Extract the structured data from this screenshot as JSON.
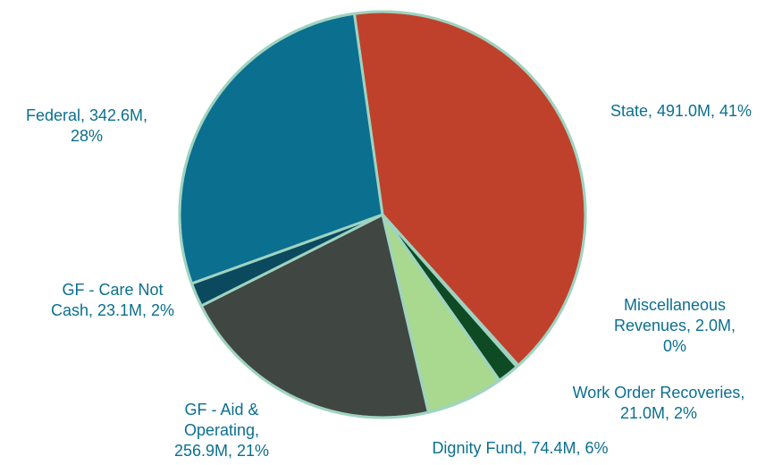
{
  "chart_data": {
    "type": "pie",
    "labels": [
      "State, 491.0M, 41%",
      "Miscellaneous Revenues, 2.0M, 0%",
      "Work Order Recoveries, 21.0M, 2%",
      "Dignity Fund, 74.4M, 6%",
      "GF - Aid & Operating, 256.9M, 21%",
      "GF - Care Not Cash, 23.1M, 2%",
      "Federal, 342.6M, 28%"
    ],
    "values": [
      491.0,
      2.0,
      21.0,
      74.4,
      256.9,
      23.1,
      342.6
    ],
    "colors": [
      "#c0412b",
      "#c9b98e",
      "#0e4a23",
      "#a9d98f",
      "#404641",
      "#0b4a5e",
      "#0b6f8f"
    ]
  }
}
